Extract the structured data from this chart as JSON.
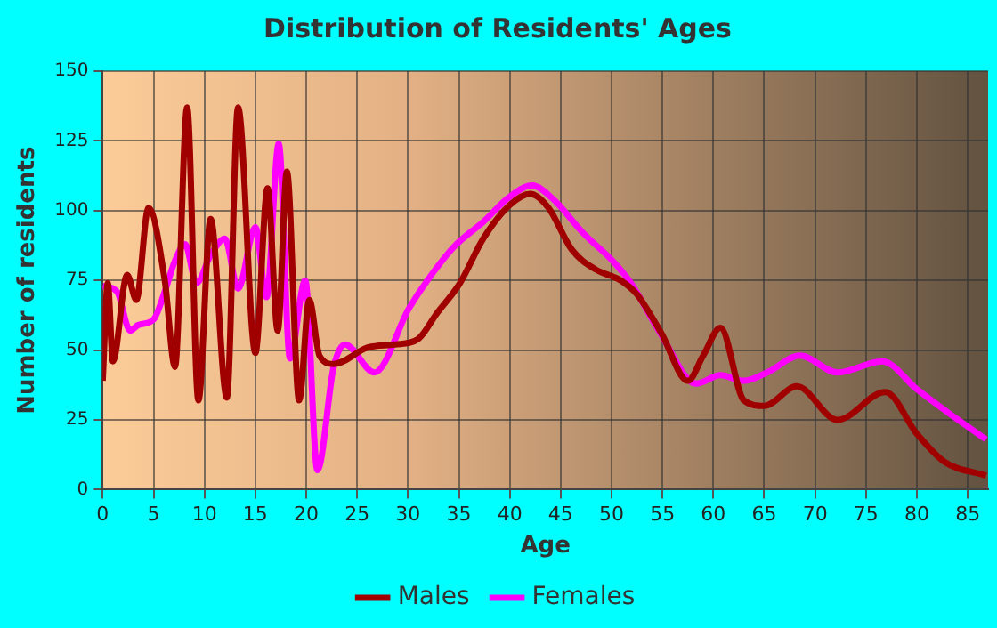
{
  "chart_data": {
    "type": "line",
    "title": "Distribution of Residents' Ages",
    "xlabel": "Age",
    "ylabel": "Number of residents",
    "xlim": [
      0,
      87
    ],
    "xticks": [
      0,
      5,
      10,
      15,
      20,
      25,
      30,
      35,
      40,
      45,
      50,
      55,
      60,
      65,
      70,
      75,
      80,
      85
    ],
    "ylim": [
      0,
      150
    ],
    "yticks": [
      0,
      25,
      50,
      75,
      100,
      125,
      150
    ],
    "grid": true,
    "legend": "bottom",
    "marker": "none",
    "line_style": "solid",
    "series": [
      {
        "name": "Males",
        "color": "#a00000",
        "x": [
          0,
          0.5,
          1,
          2.4,
          3.3,
          4.5,
          6.1,
          7.1,
          8.3,
          9.4,
          10.6,
          12.2,
          13.3,
          15,
          16.2,
          17.2,
          18.1,
          19.3,
          20.3,
          21.3,
          22.7,
          26.1,
          28.7,
          31,
          32.8,
          35.1,
          37.4,
          40,
          42,
          43.8,
          46.1,
          48.4,
          50.9,
          52.5,
          54.9,
          57.5,
          59,
          60.7,
          63,
          65,
          68.2,
          72.2,
          76.9,
          80,
          82.7,
          86.8
        ],
        "values": [
          39,
          74,
          46,
          77,
          68,
          101,
          75,
          44,
          137,
          32,
          97,
          33,
          137,
          49,
          108,
          57,
          114,
          32,
          68,
          48,
          45,
          51,
          52,
          54,
          63,
          74,
          90,
          102,
          106,
          101,
          86,
          79,
          75,
          70,
          56,
          39,
          48,
          58,
          32,
          30,
          37,
          25,
          35,
          20,
          10,
          5
        ]
      },
      {
        "name": "Females",
        "color": "#ff00ff",
        "x": [
          0,
          1.4,
          2.7,
          3.5,
          5,
          6.1,
          7.1,
          8.1,
          9.2,
          10.6,
          12,
          13.3,
          15,
          16.1,
          17.3,
          18.4,
          19.9,
          21.1,
          22.7,
          23.8,
          26.7,
          30.1,
          31.9,
          34.5,
          37.4,
          40,
          42.2,
          44.3,
          47.2,
          50.1,
          51.9,
          54.8,
          58.3,
          60.7,
          63,
          65.3,
          68.5,
          72.2,
          76.6,
          80,
          83.3,
          86.8
        ],
        "values": [
          73,
          71,
          57,
          59,
          61,
          71,
          82,
          88,
          74,
          84,
          90,
          72,
          94,
          69,
          124,
          47,
          75,
          7,
          44,
          52,
          42,
          65,
          75,
          87,
          96,
          105,
          109,
          104,
          92,
          82,
          74,
          56,
          38,
          41,
          39,
          42,
          48,
          42,
          46,
          36,
          27,
          18
        ]
      }
    ]
  }
}
